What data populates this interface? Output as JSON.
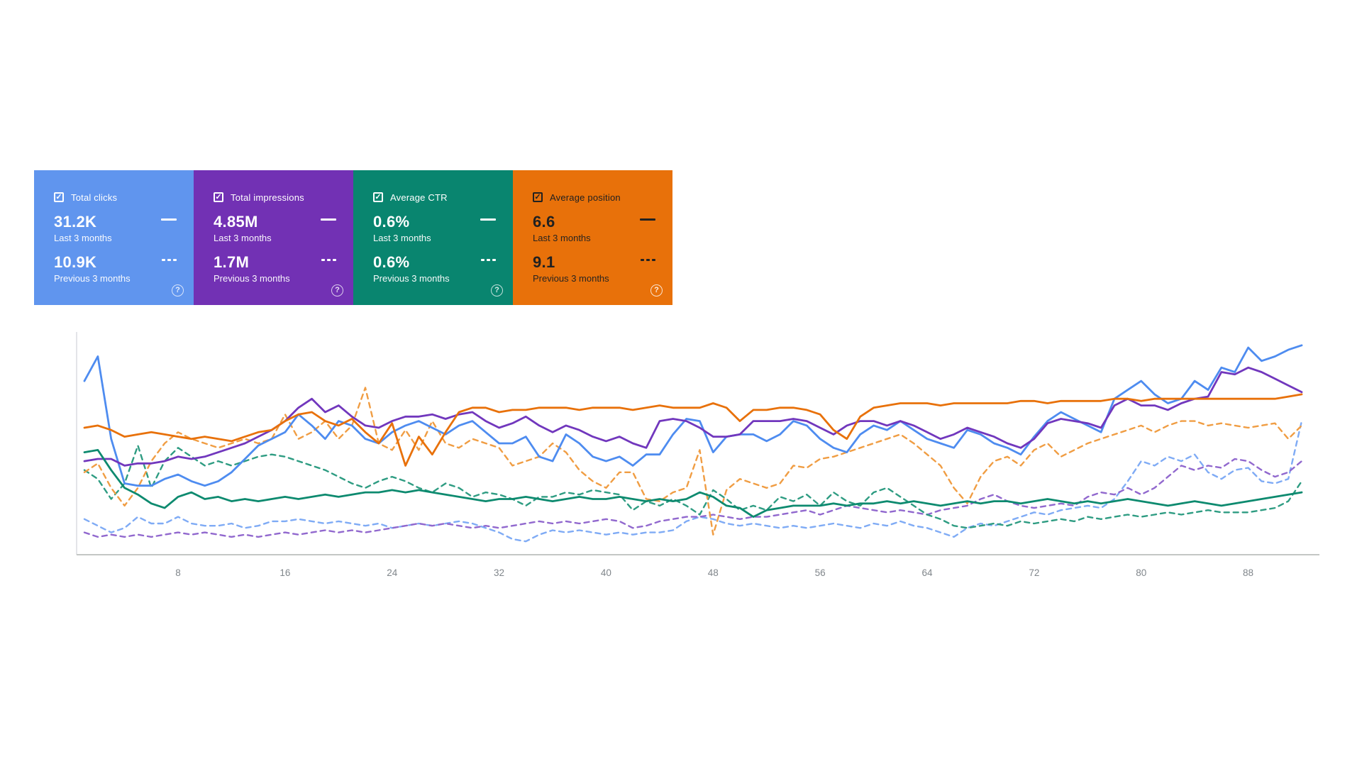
{
  "cards": [
    {
      "label": "Total clicks",
      "checked": true,
      "value_last": "31.2K",
      "caption_last": "Last 3 months",
      "value_prev": "10.9K",
      "caption_prev": "Previous 3 months",
      "bg": "#6095ee",
      "text": "#ffffff"
    },
    {
      "label": "Total impressions",
      "checked": true,
      "value_last": "4.85M",
      "caption_last": "Last 3 months",
      "value_prev": "1.7M",
      "caption_prev": "Previous 3 months",
      "bg": "#7231b4",
      "text": "#ffffff"
    },
    {
      "label": "Average CTR",
      "checked": true,
      "value_last": "0.6%",
      "caption_last": "Last 3 months",
      "value_prev": "0.6%",
      "caption_prev": "Previous 3 months",
      "bg": "#09856f",
      "text": "#ffffff"
    },
    {
      "label": "Average position",
      "checked": true,
      "value_last": "6.6",
      "caption_last": "Last 3 months",
      "value_prev": "9.1",
      "caption_prev": "Previous 3 months",
      "bg": "#e8710a",
      "text": "#212121"
    }
  ],
  "help_icon_glyph": "?",
  "checkbox_glyph": "✓",
  "chart_data": {
    "type": "line",
    "x_domain": [
      1,
      92
    ],
    "x_ticks": [
      8,
      16,
      24,
      32,
      40,
      48,
      56,
      64,
      72,
      80,
      88
    ],
    "y_axis_labeled": false,
    "note_values": "normalized plot height 0..1 (no y-axis labels shown in chart)",
    "grid": false,
    "legend_position": "in-cards",
    "axis_line_color": "#c4c7c5",
    "y_axis_line_color": "#dadce0",
    "tick_label_color": "#80868b",
    "series": [
      {
        "name": "Total clicks — Last 3 months",
        "metric": "clicks",
        "period": "last",
        "color": "#4e8cf0",
        "dash": false,
        "values_norm": [
          0.78,
          0.89,
          0.52,
          0.32,
          0.31,
          0.31,
          0.34,
          0.36,
          0.33,
          0.31,
          0.33,
          0.37,
          0.43,
          0.49,
          0.52,
          0.55,
          0.63,
          0.58,
          0.52,
          0.6,
          0.58,
          0.52,
          0.5,
          0.55,
          0.58,
          0.6,
          0.57,
          0.54,
          0.58,
          0.6,
          0.55,
          0.5,
          0.5,
          0.53,
          0.44,
          0.42,
          0.54,
          0.5,
          0.44,
          0.42,
          0.44,
          0.4,
          0.45,
          0.45,
          0.54,
          0.61,
          0.6,
          0.46,
          0.53,
          0.54,
          0.54,
          0.51,
          0.54,
          0.6,
          0.58,
          0.52,
          0.48,
          0.46,
          0.54,
          0.58,
          0.56,
          0.6,
          0.56,
          0.52,
          0.5,
          0.48,
          0.56,
          0.54,
          0.5,
          0.48,
          0.45,
          0.53,
          0.6,
          0.64,
          0.61,
          0.58,
          0.55,
          0.7,
          0.74,
          0.78,
          0.72,
          0.68,
          0.7,
          0.78,
          0.74,
          0.84,
          0.82,
          0.93,
          0.87,
          0.89,
          0.92,
          0.94
        ]
      },
      {
        "name": "Total impressions — Last 3 months",
        "metric": "impressions",
        "period": "last",
        "color": "#7137bd",
        "dash": false,
        "values_norm": [
          0.42,
          0.43,
          0.43,
          0.4,
          0.41,
          0.41,
          0.42,
          0.44,
          0.43,
          0.44,
          0.46,
          0.48,
          0.5,
          0.53,
          0.56,
          0.6,
          0.66,
          0.7,
          0.64,
          0.67,
          0.62,
          0.58,
          0.57,
          0.6,
          0.62,
          0.62,
          0.63,
          0.61,
          0.63,
          0.64,
          0.6,
          0.57,
          0.59,
          0.62,
          0.58,
          0.55,
          0.58,
          0.56,
          0.53,
          0.51,
          0.53,
          0.5,
          0.48,
          0.6,
          0.61,
          0.6,
          0.57,
          0.53,
          0.53,
          0.54,
          0.6,
          0.6,
          0.6,
          0.61,
          0.6,
          0.57,
          0.54,
          0.58,
          0.6,
          0.6,
          0.58,
          0.6,
          0.58,
          0.55,
          0.52,
          0.54,
          0.57,
          0.55,
          0.53,
          0.5,
          0.48,
          0.52,
          0.59,
          0.61,
          0.6,
          0.59,
          0.57,
          0.67,
          0.7,
          0.67,
          0.67,
          0.65,
          0.68,
          0.7,
          0.71,
          0.82,
          0.81,
          0.84,
          0.82,
          0.79,
          0.76,
          0.73
        ]
      },
      {
        "name": "Average CTR — Last 3 months",
        "metric": "ctr",
        "period": "last",
        "color": "#0d8a6f",
        "dash": false,
        "values_norm": [
          0.46,
          0.47,
          0.38,
          0.3,
          0.27,
          0.23,
          0.21,
          0.26,
          0.28,
          0.25,
          0.26,
          0.24,
          0.25,
          0.24,
          0.25,
          0.26,
          0.25,
          0.26,
          0.27,
          0.26,
          0.27,
          0.28,
          0.28,
          0.29,
          0.28,
          0.29,
          0.28,
          0.27,
          0.26,
          0.25,
          0.24,
          0.25,
          0.25,
          0.26,
          0.25,
          0.24,
          0.25,
          0.26,
          0.25,
          0.25,
          0.26,
          0.25,
          0.24,
          0.25,
          0.24,
          0.25,
          0.28,
          0.26,
          0.22,
          0.21,
          0.17,
          0.2,
          0.21,
          0.22,
          0.22,
          0.22,
          0.23,
          0.22,
          0.23,
          0.23,
          0.24,
          0.23,
          0.24,
          0.23,
          0.22,
          0.23,
          0.24,
          0.23,
          0.24,
          0.24,
          0.23,
          0.24,
          0.25,
          0.24,
          0.23,
          0.24,
          0.23,
          0.24,
          0.25,
          0.24,
          0.23,
          0.22,
          0.23,
          0.24,
          0.23,
          0.22,
          0.23,
          0.24,
          0.25,
          0.26,
          0.27,
          0.28
        ]
      },
      {
        "name": "Average position — Last 3 months",
        "metric": "position",
        "period": "last",
        "color": "#e8710a",
        "dash": false,
        "values_norm": [
          0.57,
          0.58,
          0.56,
          0.53,
          0.54,
          0.55,
          0.54,
          0.53,
          0.52,
          0.53,
          0.52,
          0.51,
          0.53,
          0.55,
          0.56,
          0.6,
          0.63,
          0.64,
          0.6,
          0.58,
          0.61,
          0.55,
          0.5,
          0.59,
          0.4,
          0.53,
          0.45,
          0.55,
          0.64,
          0.66,
          0.66,
          0.64,
          0.65,
          0.65,
          0.66,
          0.66,
          0.66,
          0.65,
          0.66,
          0.66,
          0.66,
          0.65,
          0.66,
          0.67,
          0.66,
          0.66,
          0.66,
          0.68,
          0.66,
          0.6,
          0.65,
          0.65,
          0.66,
          0.66,
          0.65,
          0.63,
          0.56,
          0.52,
          0.62,
          0.66,
          0.67,
          0.68,
          0.68,
          0.68,
          0.67,
          0.68,
          0.68,
          0.68,
          0.68,
          0.68,
          0.69,
          0.69,
          0.68,
          0.69,
          0.69,
          0.69,
          0.69,
          0.7,
          0.7,
          0.69,
          0.7,
          0.7,
          0.7,
          0.7,
          0.7,
          0.7,
          0.7,
          0.7,
          0.7,
          0.7,
          0.71,
          0.72
        ]
      },
      {
        "name": "Total clicks — Previous 3 months",
        "metric": "clicks",
        "period": "previous",
        "color": "#7fabf5",
        "dash": true,
        "values_norm": [
          0.16,
          0.13,
          0.1,
          0.12,
          0.17,
          0.14,
          0.14,
          0.17,
          0.14,
          0.13,
          0.13,
          0.14,
          0.12,
          0.13,
          0.15,
          0.15,
          0.16,
          0.15,
          0.14,
          0.15,
          0.14,
          0.13,
          0.14,
          0.12,
          0.13,
          0.14,
          0.13,
          0.14,
          0.15,
          0.14,
          0.12,
          0.1,
          0.07,
          0.06,
          0.09,
          0.11,
          0.1,
          0.11,
          0.1,
          0.09,
          0.1,
          0.09,
          0.1,
          0.1,
          0.11,
          0.15,
          0.17,
          0.16,
          0.14,
          0.13,
          0.14,
          0.13,
          0.12,
          0.13,
          0.12,
          0.13,
          0.14,
          0.13,
          0.12,
          0.14,
          0.13,
          0.15,
          0.13,
          0.12,
          0.1,
          0.08,
          0.12,
          0.14,
          0.13,
          0.15,
          0.17,
          0.19,
          0.18,
          0.2,
          0.21,
          0.22,
          0.21,
          0.25,
          0.33,
          0.42,
          0.4,
          0.44,
          0.42,
          0.45,
          0.37,
          0.34,
          0.38,
          0.39,
          0.33,
          0.32,
          0.34,
          0.6
        ]
      },
      {
        "name": "Total impressions — Previous 3 months",
        "metric": "impressions",
        "period": "previous",
        "color": "#9168ce",
        "dash": true,
        "values_norm": [
          0.1,
          0.08,
          0.09,
          0.08,
          0.09,
          0.08,
          0.09,
          0.1,
          0.09,
          0.1,
          0.09,
          0.08,
          0.09,
          0.08,
          0.09,
          0.1,
          0.09,
          0.1,
          0.11,
          0.1,
          0.11,
          0.1,
          0.11,
          0.12,
          0.13,
          0.14,
          0.13,
          0.14,
          0.13,
          0.12,
          0.13,
          0.12,
          0.13,
          0.14,
          0.15,
          0.14,
          0.15,
          0.14,
          0.15,
          0.16,
          0.15,
          0.12,
          0.13,
          0.15,
          0.16,
          0.17,
          0.17,
          0.18,
          0.17,
          0.16,
          0.17,
          0.17,
          0.18,
          0.19,
          0.2,
          0.18,
          0.2,
          0.22,
          0.21,
          0.2,
          0.19,
          0.2,
          0.19,
          0.18,
          0.2,
          0.21,
          0.22,
          0.25,
          0.27,
          0.24,
          0.22,
          0.21,
          0.22,
          0.23,
          0.22,
          0.26,
          0.28,
          0.27,
          0.3,
          0.27,
          0.3,
          0.35,
          0.4,
          0.38,
          0.4,
          0.39,
          0.43,
          0.42,
          0.38,
          0.35,
          0.37,
          0.42
        ]
      },
      {
        "name": "Average CTR — Previous 3 months",
        "metric": "ctr",
        "period": "previous",
        "color": "#2e9c82",
        "dash": true,
        "values_norm": [
          0.38,
          0.34,
          0.25,
          0.32,
          0.49,
          0.3,
          0.42,
          0.48,
          0.44,
          0.4,
          0.42,
          0.4,
          0.42,
          0.44,
          0.45,
          0.44,
          0.42,
          0.4,
          0.38,
          0.35,
          0.32,
          0.3,
          0.33,
          0.35,
          0.33,
          0.3,
          0.28,
          0.32,
          0.3,
          0.26,
          0.28,
          0.27,
          0.25,
          0.22,
          0.26,
          0.26,
          0.28,
          0.27,
          0.29,
          0.28,
          0.27,
          0.2,
          0.24,
          0.22,
          0.25,
          0.22,
          0.18,
          0.29,
          0.25,
          0.2,
          0.22,
          0.2,
          0.26,
          0.24,
          0.27,
          0.22,
          0.28,
          0.24,
          0.22,
          0.28,
          0.3,
          0.26,
          0.22,
          0.18,
          0.16,
          0.13,
          0.12,
          0.13,
          0.14,
          0.13,
          0.15,
          0.14,
          0.15,
          0.16,
          0.15,
          0.17,
          0.16,
          0.17,
          0.18,
          0.17,
          0.18,
          0.19,
          0.18,
          0.19,
          0.2,
          0.19,
          0.19,
          0.19,
          0.2,
          0.21,
          0.24,
          0.33
        ]
      },
      {
        "name": "Average position — Previous 3 months",
        "metric": "position",
        "period": "previous",
        "color": "#f09d43",
        "dash": true,
        "values_norm": [
          0.37,
          0.41,
          0.3,
          0.22,
          0.3,
          0.42,
          0.5,
          0.55,
          0.52,
          0.5,
          0.48,
          0.5,
          0.52,
          0.5,
          0.52,
          0.63,
          0.52,
          0.55,
          0.6,
          0.52,
          0.58,
          0.75,
          0.5,
          0.47,
          0.56,
          0.47,
          0.6,
          0.5,
          0.48,
          0.52,
          0.5,
          0.48,
          0.4,
          0.42,
          0.44,
          0.5,
          0.46,
          0.38,
          0.33,
          0.3,
          0.37,
          0.37,
          0.25,
          0.24,
          0.28,
          0.3,
          0.47,
          0.09,
          0.29,
          0.34,
          0.32,
          0.3,
          0.32,
          0.4,
          0.39,
          0.43,
          0.44,
          0.46,
          0.48,
          0.5,
          0.52,
          0.54,
          0.5,
          0.45,
          0.4,
          0.3,
          0.23,
          0.35,
          0.42,
          0.44,
          0.4,
          0.47,
          0.5,
          0.44,
          0.47,
          0.5,
          0.52,
          0.54,
          0.56,
          0.58,
          0.55,
          0.58,
          0.6,
          0.6,
          0.58,
          0.59,
          0.58,
          0.57,
          0.58,
          0.59,
          0.52,
          0.58
        ]
      }
    ]
  }
}
